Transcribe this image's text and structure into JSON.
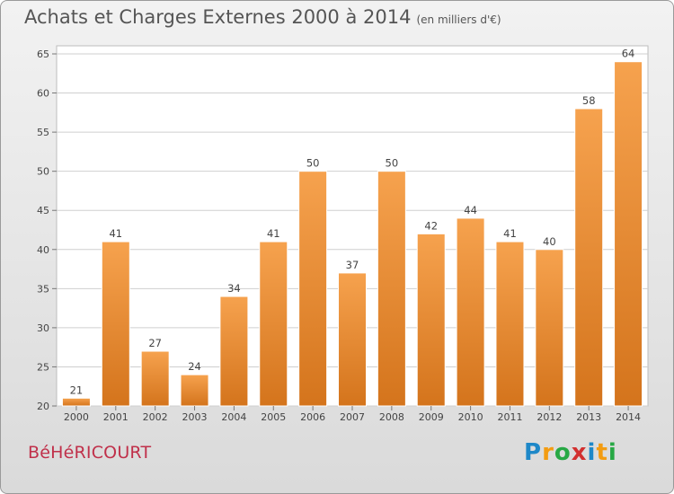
{
  "title": "Achats et Charges Externes 2000 à 2014",
  "subtitle": "(en milliers d'€)",
  "commune": "BéHéRICOURT",
  "brand": {
    "letters": [
      "P",
      "r",
      "o",
      "x",
      "i",
      "t",
      "i"
    ],
    "colors": [
      "#1e88c8",
      "#f39c12",
      "#27a844",
      "#d2302f",
      "#1e88c8",
      "#f39c12",
      "#27a844"
    ]
  },
  "chart_data": {
    "type": "bar",
    "categories": [
      "2000",
      "2001",
      "2002",
      "2003",
      "2004",
      "2005",
      "2006",
      "2007",
      "2008",
      "2009",
      "2010",
      "2011",
      "2012",
      "2013",
      "2014"
    ],
    "values": [
      21,
      41,
      27,
      24,
      34,
      41,
      50,
      37,
      50,
      42,
      44,
      41,
      40,
      58,
      64
    ],
    "ylim": [
      20,
      65
    ],
    "yticks": [
      20,
      25,
      30,
      35,
      40,
      45,
      50,
      55,
      60,
      65
    ],
    "grid": true,
    "bar_color": "#f0953f"
  }
}
